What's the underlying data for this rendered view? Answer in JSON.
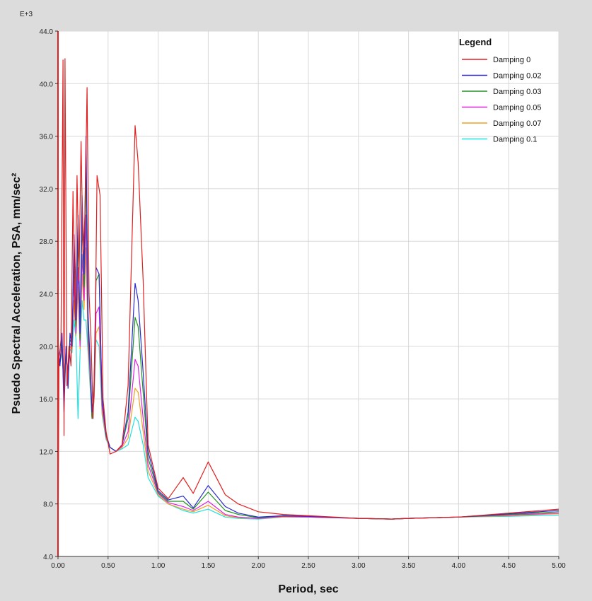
{
  "chart_data": {
    "type": "line",
    "title": "",
    "xlabel": "Period, sec",
    "ylabel": "Psuedo Spectral Acceleration, PSA, mm/sec²",
    "y_multiplier_label": "E+3",
    "xlim": [
      0,
      5
    ],
    "ylim": [
      4,
      44
    ],
    "x_ticks": [
      "0.00",
      "0.50",
      "1.00",
      "1.50",
      "2.00",
      "2.50",
      "3.00",
      "3.50",
      "4.00",
      "4.50",
      "5.00"
    ],
    "y_ticks": [
      "4.0",
      "8.0",
      "12.0",
      "16.0",
      "20.0",
      "24.0",
      "28.0",
      "32.0",
      "36.0",
      "40.0",
      "44.0"
    ],
    "grid": true,
    "legend": {
      "title": "Legend",
      "placement": "top-right"
    },
    "series": [
      {
        "name": "Damping 0",
        "color": "#e02020",
        "points": [
          [
            0.0,
            4.0
          ],
          [
            0.01,
            19.0
          ],
          [
            0.03,
            20.5
          ],
          [
            0.05,
            41.8
          ],
          [
            0.06,
            13.2
          ],
          [
            0.07,
            41.9
          ],
          [
            0.09,
            17.0
          ],
          [
            0.11,
            20.0
          ],
          [
            0.13,
            18.5
          ],
          [
            0.15,
            31.8
          ],
          [
            0.17,
            22.0
          ],
          [
            0.19,
            33.0
          ],
          [
            0.21,
            25.0
          ],
          [
            0.23,
            35.6
          ],
          [
            0.25,
            27.0
          ],
          [
            0.27,
            30.0
          ],
          [
            0.29,
            39.7
          ],
          [
            0.31,
            24.0
          ],
          [
            0.33,
            20.5
          ],
          [
            0.35,
            14.5
          ],
          [
            0.37,
            20.0
          ],
          [
            0.39,
            33.0
          ],
          [
            0.42,
            31.5
          ],
          [
            0.45,
            16.0
          ],
          [
            0.48,
            13.5
          ],
          [
            0.52,
            11.8
          ],
          [
            0.58,
            12.0
          ],
          [
            0.64,
            12.5
          ],
          [
            0.7,
            17.0
          ],
          [
            0.77,
            36.8
          ],
          [
            0.8,
            34.0
          ],
          [
            0.85,
            25.0
          ],
          [
            0.9,
            12.5
          ],
          [
            1.0,
            9.2
          ],
          [
            1.1,
            8.4
          ],
          [
            1.25,
            10.0
          ],
          [
            1.35,
            8.8
          ],
          [
            1.5,
            11.2
          ],
          [
            1.67,
            8.7
          ],
          [
            1.8,
            8.0
          ],
          [
            2.0,
            7.4
          ],
          [
            2.25,
            7.2
          ],
          [
            2.5,
            7.1
          ],
          [
            3.0,
            6.9
          ],
          [
            3.33,
            6.85
          ],
          [
            3.5,
            6.9
          ],
          [
            4.0,
            7.0
          ],
          [
            4.5,
            7.3
          ],
          [
            5.0,
            7.6
          ]
        ]
      },
      {
        "name": "Damping 0.02",
        "color": "#2a2ad0",
        "points": [
          [
            0.0,
            20.0
          ],
          [
            0.02,
            18.5
          ],
          [
            0.04,
            21.0
          ],
          [
            0.06,
            15.0
          ],
          [
            0.08,
            20.0
          ],
          [
            0.1,
            16.8
          ],
          [
            0.12,
            21.0
          ],
          [
            0.14,
            20.0
          ],
          [
            0.16,
            28.5
          ],
          [
            0.18,
            22.0
          ],
          [
            0.2,
            30.0
          ],
          [
            0.22,
            21.0
          ],
          [
            0.24,
            31.5
          ],
          [
            0.26,
            25.5
          ],
          [
            0.28,
            36.0
          ],
          [
            0.3,
            22.5
          ],
          [
            0.32,
            19.0
          ],
          [
            0.34,
            15.0
          ],
          [
            0.36,
            17.0
          ],
          [
            0.38,
            26.0
          ],
          [
            0.41,
            25.5
          ],
          [
            0.44,
            16.0
          ],
          [
            0.48,
            13.3
          ],
          [
            0.52,
            12.3
          ],
          [
            0.58,
            12.0
          ],
          [
            0.64,
            12.5
          ],
          [
            0.7,
            15.0
          ],
          [
            0.77,
            24.8
          ],
          [
            0.8,
            23.5
          ],
          [
            0.85,
            18.0
          ],
          [
            0.9,
            12.0
          ],
          [
            1.0,
            9.0
          ],
          [
            1.1,
            8.3
          ],
          [
            1.25,
            8.6
          ],
          [
            1.35,
            7.7
          ],
          [
            1.5,
            9.4
          ],
          [
            1.67,
            7.8
          ],
          [
            1.8,
            7.3
          ],
          [
            2.0,
            7.0
          ],
          [
            2.25,
            7.1
          ],
          [
            2.5,
            7.05
          ],
          [
            3.0,
            6.9
          ],
          [
            3.33,
            6.85
          ],
          [
            3.5,
            6.9
          ],
          [
            4.0,
            7.0
          ],
          [
            4.5,
            7.25
          ],
          [
            5.0,
            7.5
          ]
        ]
      },
      {
        "name": "Damping 0.03",
        "color": "#209020",
        "points": [
          [
            0.0,
            19.5
          ],
          [
            0.02,
            18.7
          ],
          [
            0.04,
            20.5
          ],
          [
            0.06,
            16.0
          ],
          [
            0.08,
            19.8
          ],
          [
            0.1,
            17.2
          ],
          [
            0.12,
            20.5
          ],
          [
            0.14,
            20.2
          ],
          [
            0.16,
            27.0
          ],
          [
            0.18,
            21.5
          ],
          [
            0.2,
            28.5
          ],
          [
            0.22,
            20.5
          ],
          [
            0.24,
            29.5
          ],
          [
            0.26,
            24.5
          ],
          [
            0.28,
            33.5
          ],
          [
            0.3,
            21.5
          ],
          [
            0.32,
            18.5
          ],
          [
            0.34,
            14.5
          ],
          [
            0.36,
            16.5
          ],
          [
            0.38,
            25.0
          ],
          [
            0.41,
            25.5
          ],
          [
            0.44,
            16.0
          ],
          [
            0.48,
            13.2
          ],
          [
            0.52,
            12.3
          ],
          [
            0.58,
            12.0
          ],
          [
            0.64,
            12.5
          ],
          [
            0.7,
            14.5
          ],
          [
            0.77,
            22.2
          ],
          [
            0.8,
            21.5
          ],
          [
            0.85,
            16.5
          ],
          [
            0.9,
            11.5
          ],
          [
            1.0,
            8.9
          ],
          [
            1.1,
            8.2
          ],
          [
            1.25,
            8.2
          ],
          [
            1.35,
            7.6
          ],
          [
            1.5,
            8.9
          ],
          [
            1.67,
            7.5
          ],
          [
            1.8,
            7.2
          ],
          [
            2.0,
            6.95
          ],
          [
            2.25,
            7.1
          ],
          [
            2.5,
            7.05
          ],
          [
            3.0,
            6.9
          ],
          [
            3.33,
            6.85
          ],
          [
            3.5,
            6.9
          ],
          [
            4.0,
            7.0
          ],
          [
            4.5,
            7.2
          ],
          [
            5.0,
            7.4
          ]
        ]
      },
      {
        "name": "Damping 0.05",
        "color": "#e020e0",
        "points": [
          [
            0.0,
            19.2
          ],
          [
            0.02,
            18.8
          ],
          [
            0.04,
            20.0
          ],
          [
            0.06,
            16.5
          ],
          [
            0.08,
            19.5
          ],
          [
            0.1,
            17.5
          ],
          [
            0.12,
            20.2
          ],
          [
            0.14,
            20.0
          ],
          [
            0.16,
            25.0
          ],
          [
            0.18,
            21.0
          ],
          [
            0.2,
            26.0
          ],
          [
            0.22,
            20.0
          ],
          [
            0.24,
            27.0
          ],
          [
            0.26,
            23.5
          ],
          [
            0.28,
            30.0
          ],
          [
            0.3,
            20.5
          ],
          [
            0.32,
            18.0
          ],
          [
            0.34,
            14.5
          ],
          [
            0.36,
            16.2
          ],
          [
            0.38,
            22.5
          ],
          [
            0.41,
            23.0
          ],
          [
            0.44,
            15.5
          ],
          [
            0.48,
            13.1
          ],
          [
            0.52,
            12.3
          ],
          [
            0.58,
            12.0
          ],
          [
            0.64,
            12.4
          ],
          [
            0.7,
            13.5
          ],
          [
            0.77,
            19.0
          ],
          [
            0.8,
            18.5
          ],
          [
            0.85,
            14.5
          ],
          [
            0.9,
            11.0
          ],
          [
            1.0,
            8.8
          ],
          [
            1.1,
            8.1
          ],
          [
            1.25,
            7.8
          ],
          [
            1.35,
            7.5
          ],
          [
            1.5,
            8.2
          ],
          [
            1.67,
            7.2
          ],
          [
            1.8,
            7.0
          ],
          [
            2.0,
            6.9
          ],
          [
            2.25,
            7.05
          ],
          [
            2.5,
            7.0
          ],
          [
            3.0,
            6.9
          ],
          [
            3.33,
            6.85
          ],
          [
            3.5,
            6.9
          ],
          [
            4.0,
            7.0
          ],
          [
            4.5,
            7.15
          ],
          [
            5.0,
            7.3
          ]
        ]
      },
      {
        "name": "Damping 0.07",
        "color": "#f0a020",
        "points": [
          [
            0.0,
            19.0
          ],
          [
            0.02,
            18.8
          ],
          [
            0.04,
            19.8
          ],
          [
            0.06,
            17.0
          ],
          [
            0.08,
            19.3
          ],
          [
            0.1,
            17.8
          ],
          [
            0.12,
            20.0
          ],
          [
            0.14,
            19.8
          ],
          [
            0.16,
            23.5
          ],
          [
            0.18,
            20.8
          ],
          [
            0.2,
            24.5
          ],
          [
            0.22,
            19.8
          ],
          [
            0.24,
            25.5
          ],
          [
            0.26,
            22.8
          ],
          [
            0.28,
            27.5
          ],
          [
            0.3,
            20.0
          ],
          [
            0.32,
            17.5
          ],
          [
            0.34,
            14.5
          ],
          [
            0.36,
            16.0
          ],
          [
            0.38,
            21.0
          ],
          [
            0.41,
            21.5
          ],
          [
            0.44,
            15.0
          ],
          [
            0.48,
            13.0
          ],
          [
            0.52,
            12.3
          ],
          [
            0.58,
            12.0
          ],
          [
            0.64,
            12.3
          ],
          [
            0.7,
            13.0
          ],
          [
            0.77,
            16.8
          ],
          [
            0.8,
            16.5
          ],
          [
            0.85,
            13.5
          ],
          [
            0.9,
            10.5
          ],
          [
            1.0,
            8.7
          ],
          [
            1.1,
            8.0
          ],
          [
            1.25,
            7.6
          ],
          [
            1.35,
            7.4
          ],
          [
            1.5,
            7.9
          ],
          [
            1.67,
            7.1
          ],
          [
            1.8,
            6.95
          ],
          [
            2.0,
            6.9
          ],
          [
            2.25,
            7.0
          ],
          [
            2.5,
            7.0
          ],
          [
            3.0,
            6.9
          ],
          [
            3.33,
            6.85
          ],
          [
            3.5,
            6.9
          ],
          [
            4.0,
            7.0
          ],
          [
            4.5,
            7.1
          ],
          [
            5.0,
            7.25
          ]
        ]
      },
      {
        "name": "Damping 0.1",
        "color": "#20e0e0",
        "points": [
          [
            0.0,
            18.8
          ],
          [
            0.02,
            18.7
          ],
          [
            0.04,
            19.5
          ],
          [
            0.06,
            17.5
          ],
          [
            0.08,
            19.0
          ],
          [
            0.1,
            18.0
          ],
          [
            0.12,
            19.8
          ],
          [
            0.14,
            19.5
          ],
          [
            0.16,
            22.0
          ],
          [
            0.18,
            20.5
          ],
          [
            0.2,
            14.5
          ],
          [
            0.22,
            19.5
          ],
          [
            0.24,
            23.5
          ],
          [
            0.26,
            22.0
          ],
          [
            0.28,
            22.0
          ],
          [
            0.3,
            19.5
          ],
          [
            0.32,
            17.0
          ],
          [
            0.34,
            14.5
          ],
          [
            0.36,
            15.8
          ],
          [
            0.38,
            20.5
          ],
          [
            0.41,
            20.0
          ],
          [
            0.44,
            14.8
          ],
          [
            0.48,
            12.9
          ],
          [
            0.52,
            12.3
          ],
          [
            0.58,
            12.0
          ],
          [
            0.64,
            12.2
          ],
          [
            0.7,
            12.5
          ],
          [
            0.77,
            14.6
          ],
          [
            0.8,
            14.3
          ],
          [
            0.85,
            12.5
          ],
          [
            0.9,
            10.0
          ],
          [
            1.0,
            8.6
          ],
          [
            1.1,
            8.0
          ],
          [
            1.25,
            7.5
          ],
          [
            1.35,
            7.3
          ],
          [
            1.5,
            7.6
          ],
          [
            1.67,
            7.0
          ],
          [
            1.8,
            6.9
          ],
          [
            2.0,
            6.85
          ],
          [
            2.25,
            7.0
          ],
          [
            2.5,
            7.0
          ],
          [
            3.0,
            6.9
          ],
          [
            3.33,
            6.85
          ],
          [
            3.5,
            6.9
          ],
          [
            4.0,
            7.0
          ],
          [
            4.5,
            7.05
          ],
          [
            5.0,
            7.15
          ]
        ]
      }
    ]
  }
}
